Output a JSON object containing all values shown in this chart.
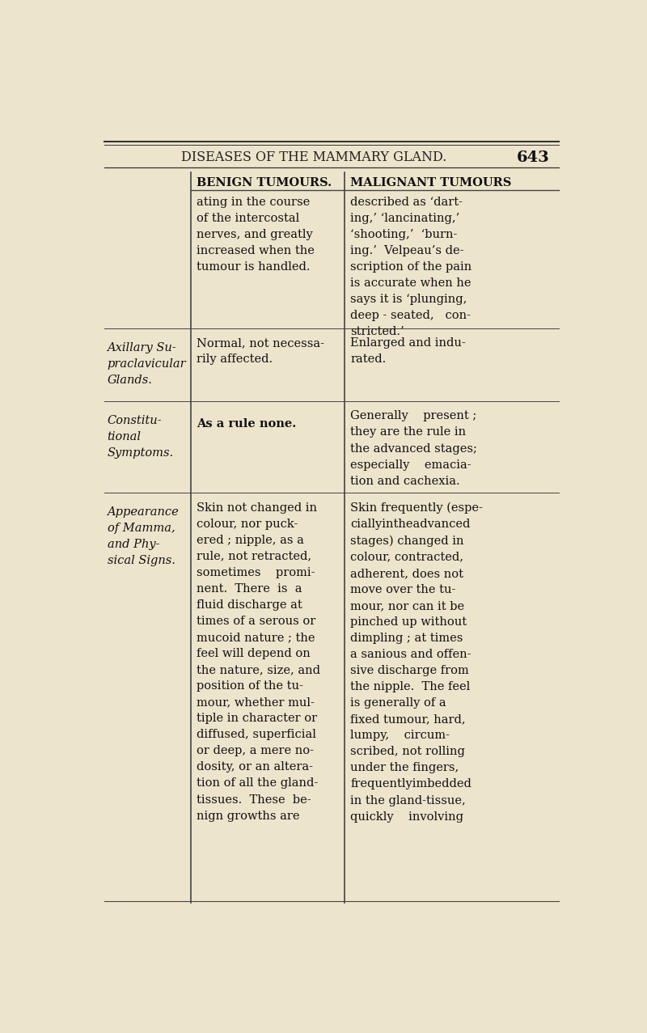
{
  "page_bg": "#ede4cc",
  "header_text": "DISEASES OF THE MAMMARY GLAND.",
  "page_number": "643",
  "col1_header": "BENIGN TUMOURS.",
  "col2_header": "MALIGNANT TUMOURS",
  "row1_label": "Axillary Su-\npraclavicular\nGlands.",
  "row2_label": "Constitu-\ntional\nSymptoms.",
  "row3_label": "Appearance\nof Mamma,\nand Phy-\nsical Signs.",
  "row1_benign": "Normal, not necessa-\nrily affected.",
  "row1_malignant": "Enlarged and indu-\nrated.",
  "row2_benign": "As a rule none.",
  "row2_malignant": "Generally    present ;\nthey are the rule in\nthe advanced stages;\nespecially    emacia-\ntion and cachexia.",
  "row3_benign": "Skin not changed in\ncolour, nor puck-\nered ; nipple, as a\nrule, not retracted,\nsometimes    promi-\nnent.  There  is  a\nfluid discharge at\ntimes of a serous or\nmucoid nature ; the\nfeel will depend on\nthe nature, size, and\nposition of the tu-\nmour, whether mul-\ntiple in character or\ndiffused, superficial\nor deep, a mere no-\ndosity, or an altera-\ntion of all the gland-\ntissues.  These  be-\nnign growths are",
  "row3_malignant": "Skin frequently (espe-\nciallyintheadvanced\nstages) changed in\ncolour, contracted,\nadherent, does not\nmove over the tu-\nmour, nor can it be\npinched up without\ndimpling ; at times\na sanious and offen-\nsive discharge from\nthe nipple.  The feel\nis generally of a\nfixed tumour, hard,\nlumpy,    circum-\nscribed, not rolling\nunder the fingers,\nfrequentlyimbedded\nin the gland-tissue,\nquickly    involving",
  "top_text_benign": "ating in the course\nof the intercostal\nnerves, and greatly\nincreased when the\ntumour is handled.",
  "top_text_malignant": "described as ‘dart-\ning,’ ‘lancinating,’\n‘shooting,’  ‘burn-\ning.’  Velpeau’s de-\nscription of the pain\nis accurate when he\nsays it is ‘plunging,\ndeep - seated,   con-\nstricted.’"
}
